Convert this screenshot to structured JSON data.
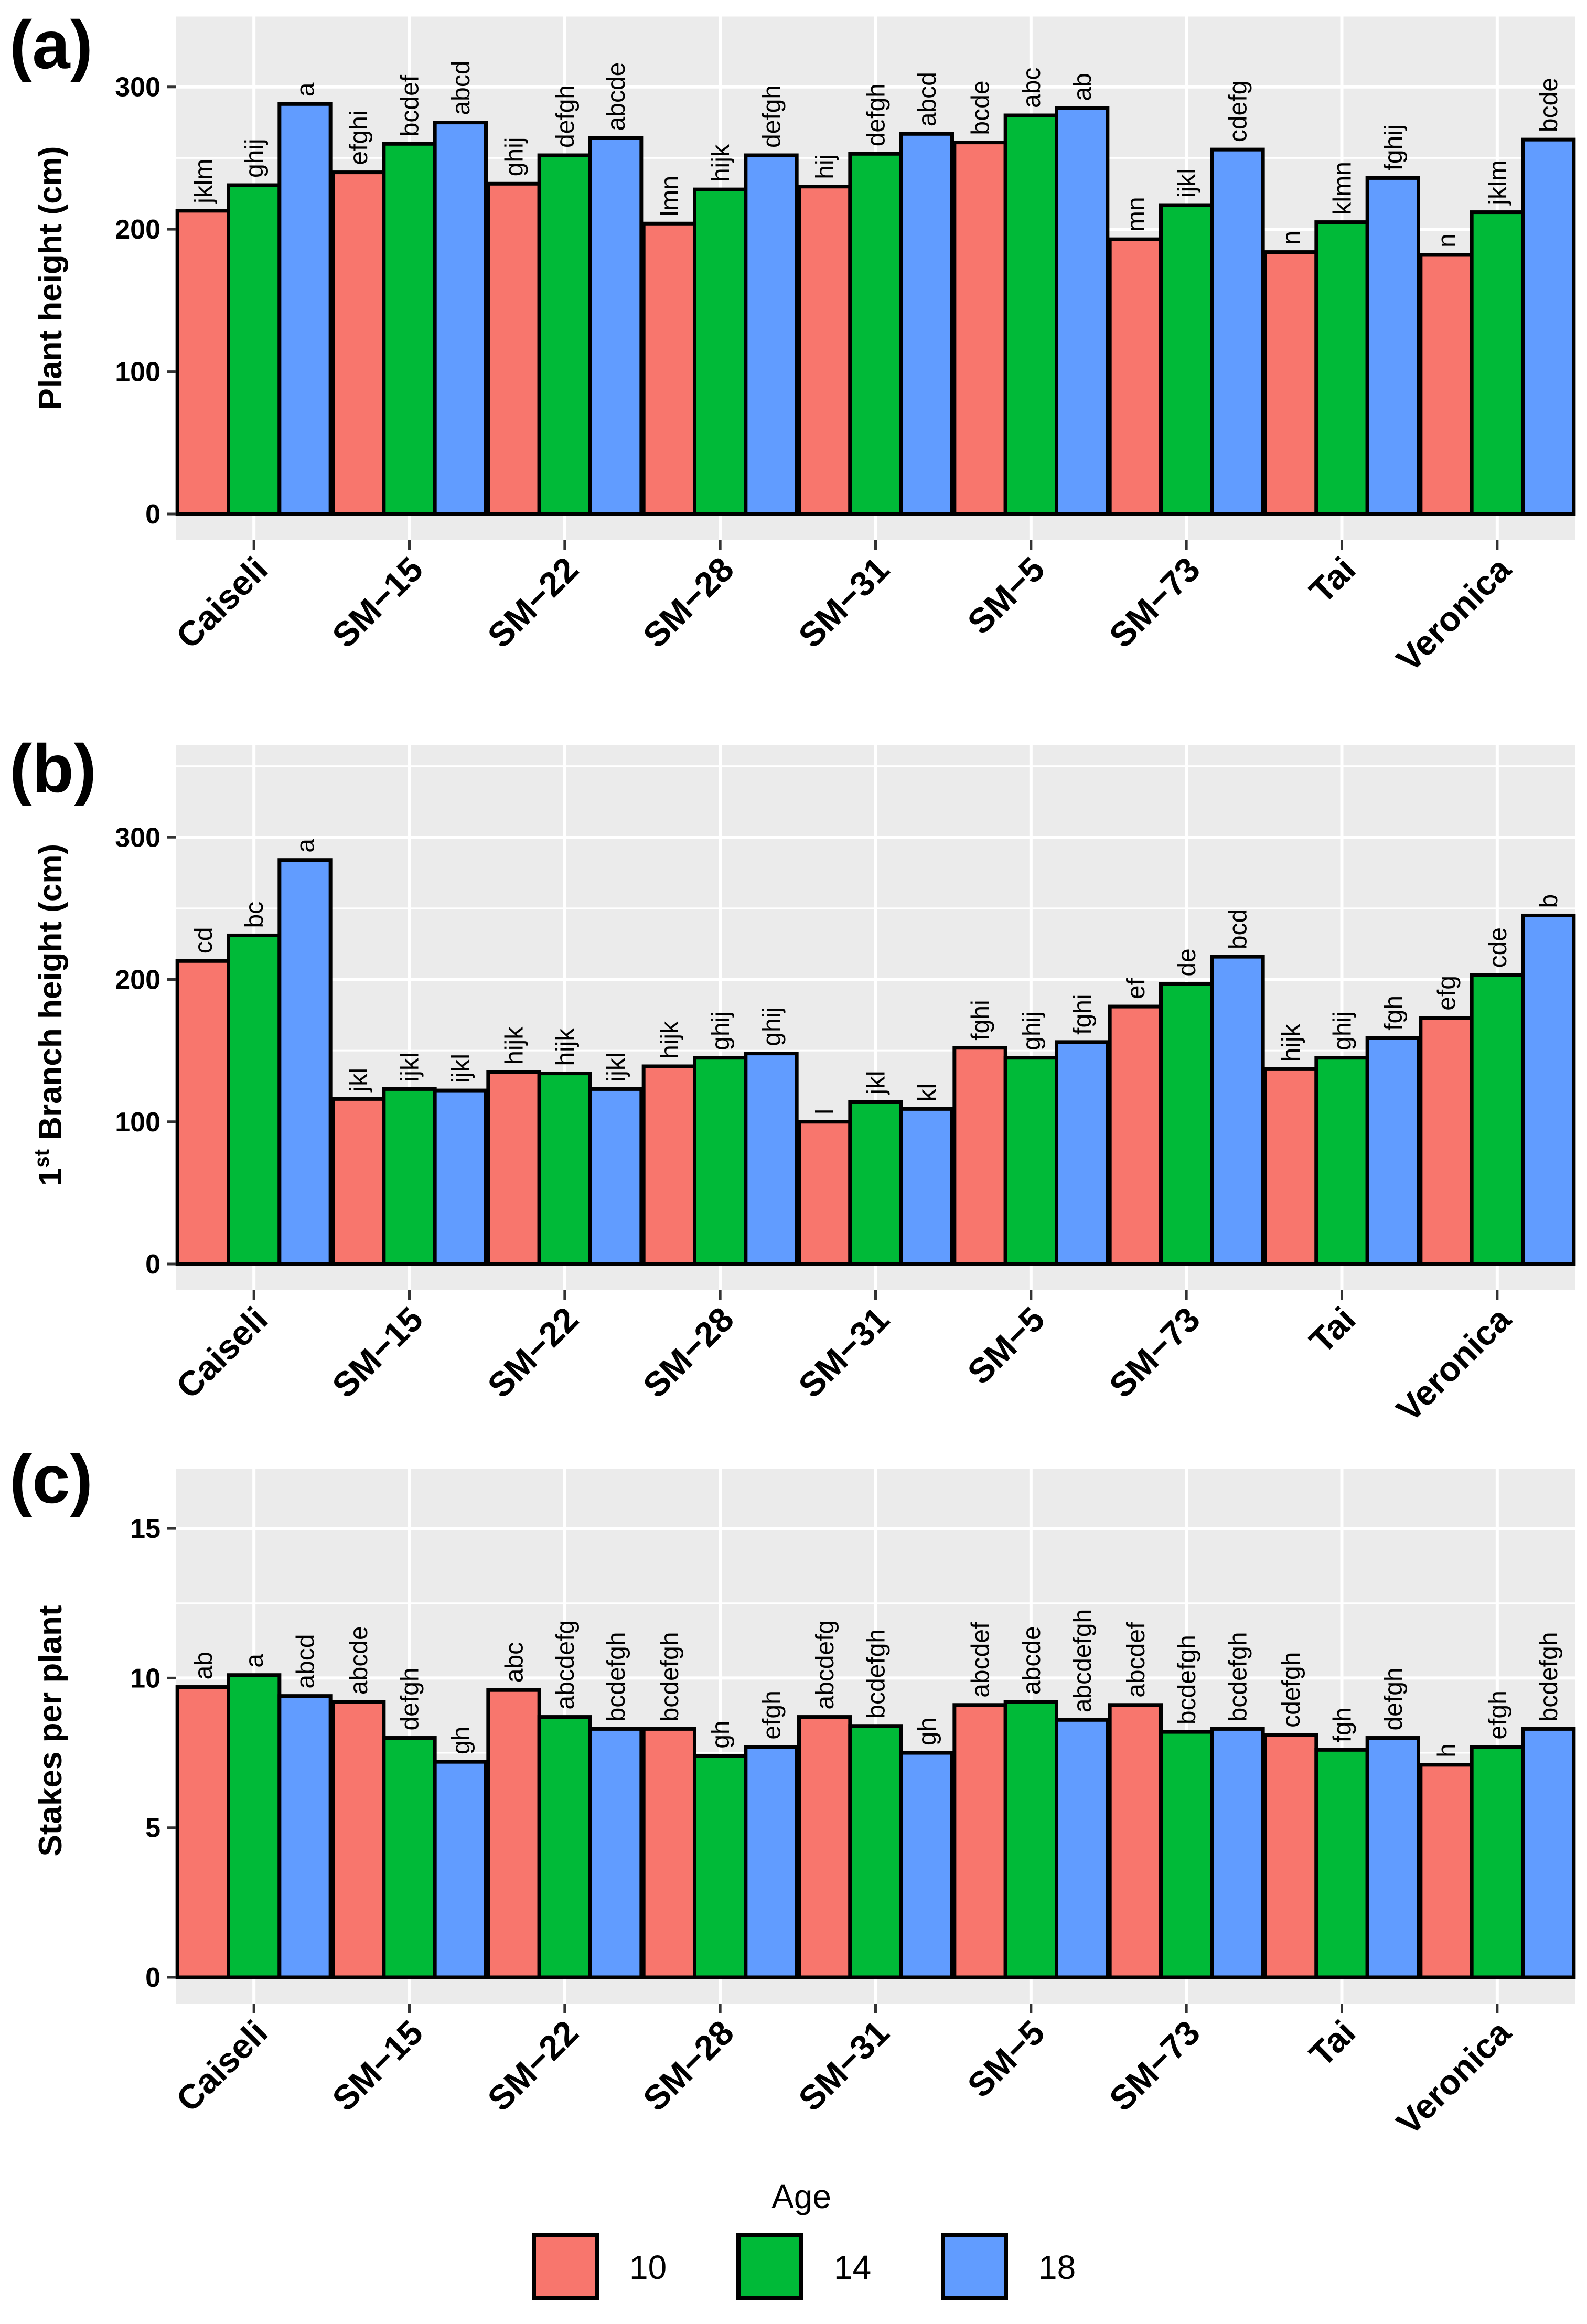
{
  "figure": {
    "legend": {
      "title": "Age",
      "entries": [
        {
          "label": "10",
          "color": "#F8766D"
        },
        {
          "label": "14",
          "color": "#00BA38"
        },
        {
          "label": "18",
          "color": "#619CFF"
        }
      ]
    }
  },
  "chart_data": [
    {
      "tag": "(a)",
      "type": "bar",
      "ylabel": "Plant height (cm)",
      "ylim": [
        0,
        350
      ],
      "yticks": [
        0,
        100,
        200,
        300
      ],
      "categories": [
        "Caiseli",
        "SM−15",
        "SM−22",
        "SM−28",
        "SM−31",
        "SM−5",
        "SM−73",
        "Tai",
        "Veronica"
      ],
      "series": [
        {
          "name": "10",
          "values": [
            213,
            240,
            232,
            204,
            230,
            261,
            193,
            184,
            182
          ],
          "labels": [
            "jklm",
            "efghi",
            "ghij",
            "lmn",
            "hij",
            "bcde",
            "mn",
            "n",
            "n"
          ]
        },
        {
          "name": "14",
          "values": [
            231,
            260,
            252,
            228,
            253,
            280,
            217,
            205,
            212
          ],
          "labels": [
            "ghij",
            "bcdef",
            "defgh",
            "hijk",
            "defgh",
            "abc",
            "ijkl",
            "klmn",
            "jklm"
          ]
        },
        {
          "name": "18",
          "values": [
            288,
            275,
            264,
            252,
            267,
            285,
            256,
            236,
            263
          ],
          "labels": [
            "a",
            "abcd",
            "abcde",
            "defgh",
            "abcd",
            "ab",
            "cdefg",
            "fghij",
            "bcde"
          ]
        }
      ]
    },
    {
      "tag": "(b)",
      "type": "bar",
      "ylabel_main": "1",
      "ylabel_sup": "st",
      "ylabel_rest": " Branch height (cm)",
      "ylim": [
        0,
        365
      ],
      "yticks": [
        0,
        100,
        200,
        300
      ],
      "categories": [
        "Caiseli",
        "SM−15",
        "SM−22",
        "SM−28",
        "SM−31",
        "SM−5",
        "SM−73",
        "Tai",
        "Veronica"
      ],
      "series": [
        {
          "name": "10",
          "values": [
            213,
            116,
            135,
            139,
            100,
            152,
            181,
            137,
            173
          ],
          "labels": [
            "cd",
            "jkl",
            "hijk",
            "hijk",
            "l",
            "fghi",
            "ef",
            "hijk",
            "efg"
          ]
        },
        {
          "name": "14",
          "values": [
            231,
            123,
            134,
            145,
            114,
            145,
            197,
            145,
            203
          ],
          "labels": [
            "bc",
            "ijkl",
            "hijk",
            "ghij",
            "jkl",
            "ghij",
            "de",
            "ghij",
            "cde"
          ]
        },
        {
          "name": "18",
          "values": [
            284,
            122,
            123,
            148,
            109,
            156,
            216,
            159,
            245
          ],
          "labels": [
            "a",
            "ijkl",
            "ijkl",
            "ghij",
            "kl",
            "fghi",
            "bcd",
            "fgh",
            "b"
          ]
        }
      ]
    },
    {
      "tag": "(c)",
      "type": "bar",
      "ylabel": "Stakes per plant",
      "ylim": [
        0,
        17
      ],
      "yticks": [
        0,
        5,
        10,
        15
      ],
      "categories": [
        "Caiseli",
        "SM−15",
        "SM−22",
        "SM−28",
        "SM−31",
        "SM−5",
        "SM−73",
        "Tai",
        "Veronica"
      ],
      "series": [
        {
          "name": "10",
          "values": [
            9.7,
            9.2,
            9.6,
            8.3,
            8.7,
            9.1,
            9.1,
            8.1,
            7.1
          ],
          "labels": [
            "ab",
            "abcde",
            "abc",
            "bcdefgh",
            "abcdefg",
            "abcdef",
            "abcdef",
            "cdefgh",
            "h"
          ]
        },
        {
          "name": "14",
          "values": [
            10.1,
            8.0,
            8.7,
            7.4,
            8.4,
            9.2,
            8.2,
            7.6,
            7.7
          ],
          "labels": [
            "a",
            "defgh",
            "abcdefg",
            "gh",
            "bcdefgh",
            "abcde",
            "bcdefgh",
            "fgh",
            "efgh"
          ]
        },
        {
          "name": "18",
          "values": [
            9.4,
            7.2,
            8.3,
            7.7,
            7.5,
            8.6,
            8.3,
            8.0,
            8.3
          ],
          "labels": [
            "abcd",
            "gh",
            "bcdefgh",
            "efgh",
            "gh",
            "abcdefgh",
            "bcdefgh",
            "defgh",
            "bcdefgh"
          ]
        }
      ]
    }
  ]
}
